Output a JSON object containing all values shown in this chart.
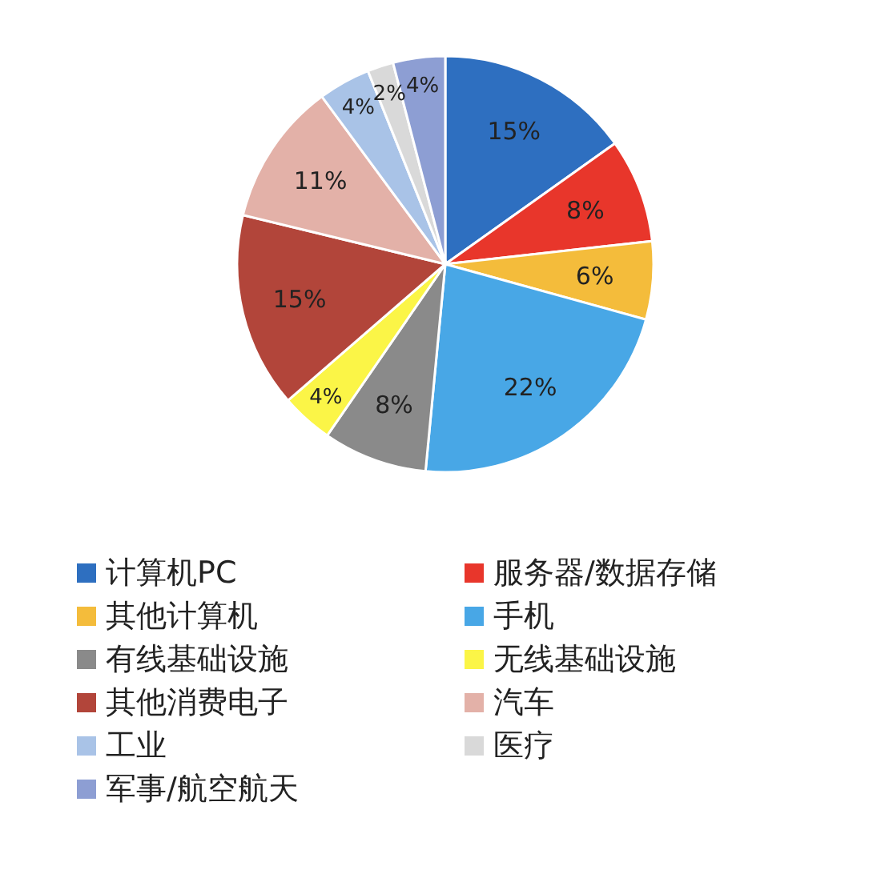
{
  "chart_data": {
    "type": "pie",
    "categories": [
      "计算机PC",
      "服务器/数据存储",
      "其他计算机",
      "手机",
      "有线基础设施",
      "无线基础设施",
      "其他消费电子",
      "汽车",
      "工业",
      "医疗",
      "军事/航空航天"
    ],
    "values": [
      15,
      8,
      6,
      22,
      8,
      4,
      15,
      11,
      4,
      2,
      4
    ],
    "colors": [
      "#2e6fc0",
      "#e8362b",
      "#f4bc3b",
      "#48a7e6",
      "#8a8a8a",
      "#fbf547",
      "#b2453a",
      "#e3b1a8",
      "#a9c3e7",
      "#d9d9d9",
      "#8d9ed3"
    ],
    "value_labels": [
      "15%",
      "8%",
      "6%",
      "22%",
      "8%",
      "4%",
      "15%",
      "11%",
      "4%",
      "2%",
      "4%"
    ],
    "legend": "bottom"
  }
}
